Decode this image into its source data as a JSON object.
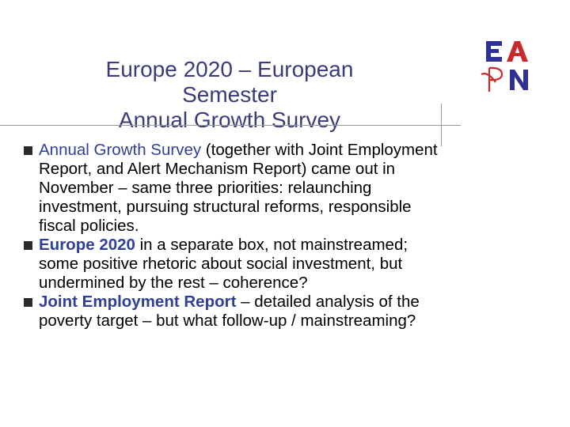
{
  "title": {
    "line1": "Europe 2020 – European",
    "line2": "Semester",
    "line3": "Annual Growth Survey"
  },
  "logo": {
    "text": "EAPN"
  },
  "colors": {
    "title": "#3b3b7a",
    "highlight": "#2f3f9a",
    "logo_navy": "#2e3192",
    "logo_red": "#c62a2a"
  },
  "bullets": [
    {
      "highlight": "Annual Growth Survey",
      "text": " (together with Joint Employment Report, and Alert Mechanism Report) came out in November – same three priorities: relaunching investment, pursuing structural reforms, responsible fiscal policies."
    },
    {
      "highlight": "Europe 2020",
      "text": " in a separate box, not mainstreamed; some positive rhetoric about social investment, but undermined by the rest – coherence?"
    },
    {
      "highlight": "Joint Employment Report",
      "text": " – detailed analysis of the poverty target – but what follow-up / mainstreaming?"
    }
  ]
}
